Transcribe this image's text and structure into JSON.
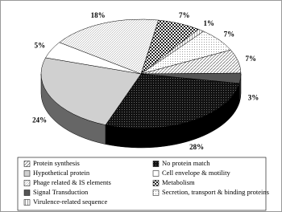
{
  "chart_data": {
    "type": "pie3d",
    "categories": [
      "Protein synthesis",
      "No protein match",
      "Hypothetical protein",
      "Cell envelope & motility",
      "Phage related & IS elements",
      "Metabolism",
      "Signal Transduction",
      "Secretion, transport & binding proteins",
      "Virulence-related sequence"
    ],
    "values": [
      7,
      28,
      24,
      5,
      18,
      7,
      3,
      7,
      1
    ],
    "value_labels": [
      "7%",
      "28%",
      "24%",
      "5%",
      "18%",
      "7%",
      "3%",
      "7%",
      "1%"
    ]
  }
}
